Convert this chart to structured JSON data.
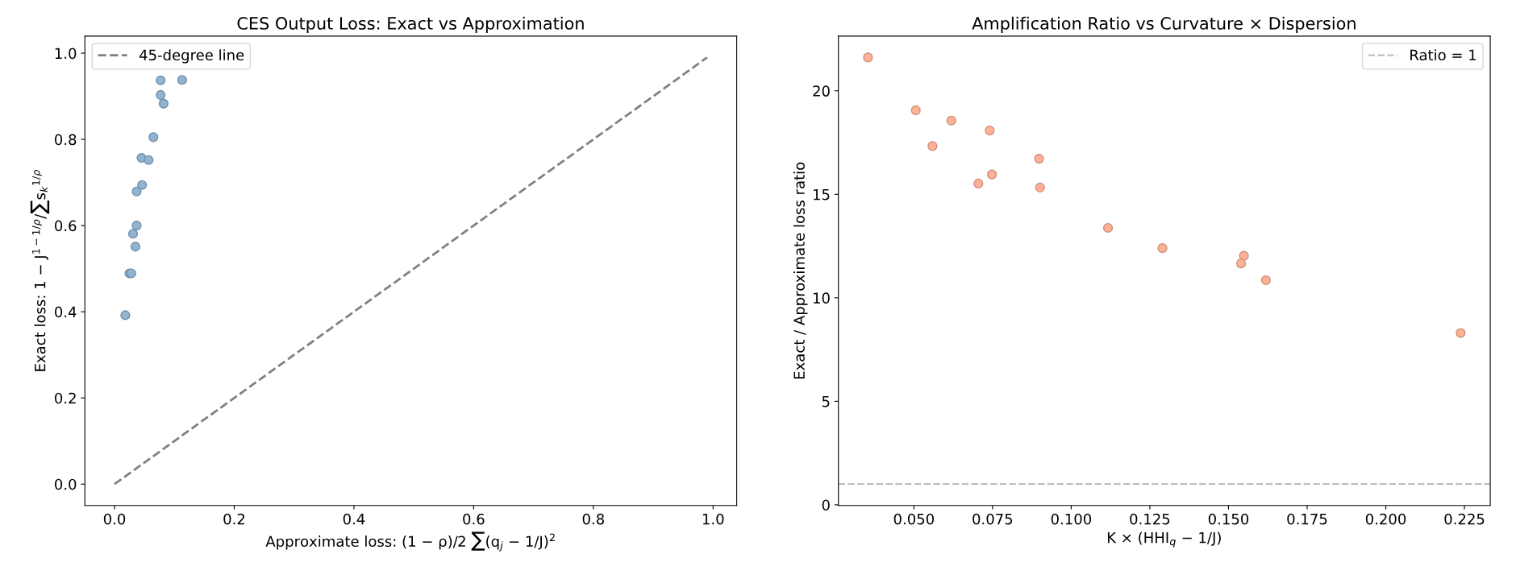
{
  "chart_data": [
    {
      "type": "scatter",
      "title": "CES Output Loss: Exact vs Approximation",
      "xlabel": "Approximate loss: (1 − ρ)/2 ∑(q$_{j}$ − 1/J)$^{2}$",
      "ylabel": "Exact loss: 1 − J$^{1−1/ρ}$/∑s$_{k}$$^{1/ρ}$",
      "xlim": [
        -0.0495,
        1.0395
      ],
      "ylim": [
        -0.0495,
        1.0395
      ],
      "xticks": [
        {
          "value": 0,
          "label": "0.0"
        },
        0.2,
        0.4,
        0.6,
        0.8,
        {
          "value": 1,
          "label": "1.0"
        }
      ],
      "yticks": [
        {
          "value": 0,
          "label": "0.0"
        },
        0.2,
        0.4,
        0.6,
        0.8,
        {
          "value": 1,
          "label": "1.0"
        }
      ],
      "grid": false,
      "legend": "top left",
      "series": [
        {
          "color": "#90b4d2",
          "marker": "circle",
          "x": [
            0.077,
            0.113,
            0.077,
            0.082,
            0.065,
            0.045,
            0.057,
            0.046,
            0.037,
            0.037,
            0.031,
            0.035,
            0.025,
            0.028,
            0.018
          ],
          "values": [
            0.937,
            0.938,
            0.903,
            0.883,
            0.805,
            0.757,
            0.752,
            0.694,
            0.679,
            0.6,
            0.581,
            0.551,
            0.489,
            0.489,
            0.392
          ]
        },
        {
          "type": "line",
          "name": "45-degree line",
          "color": "#808080",
          "line_style": "dashed",
          "marker": "none",
          "x": [
            0.0,
            0.99
          ],
          "values": [
            0.0,
            0.99
          ]
        }
      ]
    },
    {
      "type": "scatter",
      "title": "Amplification Ratio vs Curvature × Dispersion",
      "xlabel": "K × (HHI$_{q}$ − 1/J)",
      "ylabel": "Exact / Approximate loss ratio",
      "xlim": [
        0.026,
        0.2332
      ],
      "ylim": [
        -0.03,
        22.64
      ],
      "xticks": [
        {
          "value": 0.05,
          "label": "0.050"
        },
        0.075,
        {
          "value": 0.1,
          "label": "0.100"
        },
        0.125,
        {
          "value": 0.15,
          "label": "0.150"
        },
        0.175,
        {
          "value": 0.2,
          "label": "0.200"
        },
        0.225
      ],
      "yticks": [
        0,
        5,
        10,
        15,
        20
      ],
      "grid": false,
      "legend": "top right",
      "marker": "circle",
      "series": [
        {
          "color": "#ffb296",
          "x": [
            0.0354,
            0.0506,
            0.0619,
            0.0559,
            0.0741,
            0.0748,
            0.0705,
            0.0898,
            0.0901,
            0.1117,
            0.129,
            0.1549,
            0.154,
            0.1619,
            0.2238
          ],
          "values": [
            21.61,
            19.06,
            18.56,
            17.33,
            18.08,
            15.96,
            15.52,
            16.72,
            15.33,
            13.38,
            12.4,
            12.03,
            11.66,
            10.85,
            8.3
          ]
        }
      ],
      "ref_lines": [
        {
          "axis": "y",
          "value": 1,
          "label": "Ratio = 1",
          "color": "#bfbfbf",
          "line_style": "dashed"
        }
      ]
    }
  ]
}
